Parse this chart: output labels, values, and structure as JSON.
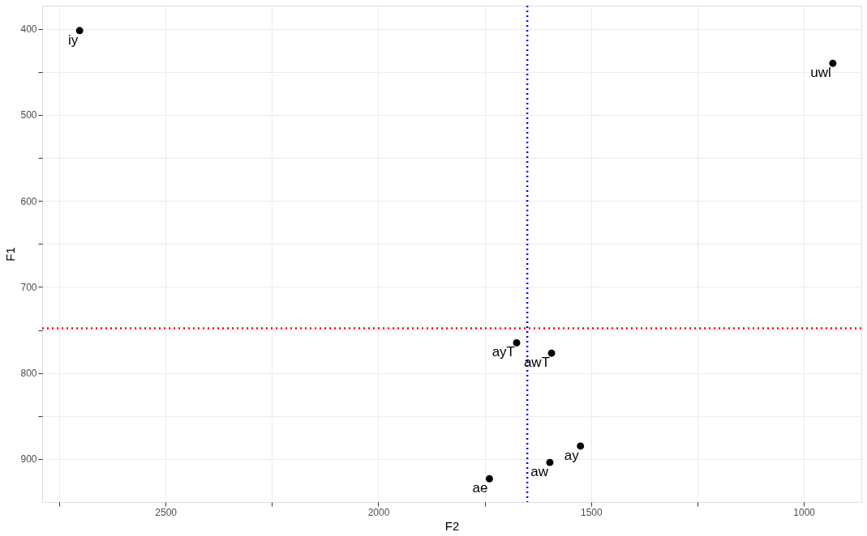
{
  "chart_data": {
    "type": "scatter",
    "xlabel": "F2",
    "ylabel": "F1",
    "series": [
      {
        "color": "#000000",
        "x": [
          2702,
          932,
          1675,
          1593,
          1525,
          1597,
          1739
        ],
        "values": [
          402,
          440,
          765,
          777,
          885,
          904,
          923
        ]
      }
    ],
    "annotations": [
      {
        "text": "iy",
        "x": 2702,
        "y": 402
      },
      {
        "text": "uwl",
        "x": 932,
        "y": 440
      },
      {
        "text": "ayT",
        "x": 1675,
        "y": 765
      },
      {
        "text": "awT",
        "x": 1593,
        "y": 777
      },
      {
        "text": "ay",
        "x": 1525,
        "y": 885
      },
      {
        "text": "aw",
        "x": 1597,
        "y": 904
      },
      {
        "text": "ae",
        "x": 1739,
        "y": 923
      }
    ],
    "xlim": [
      2790,
      865
    ],
    "ylim": [
      950,
      373
    ],
    "xticks": [
      {
        "value": 2750,
        "label": null
      },
      2500,
      {
        "value": 2250,
        "label": null
      },
      2000,
      {
        "value": 1750,
        "label": null
      },
      1500,
      {
        "value": 1250,
        "label": null
      },
      1000
    ],
    "yticks": [
      400,
      {
        "value": 450,
        "label": null
      },
      500,
      {
        "value": 550,
        "label": null
      },
      600,
      {
        "value": 650,
        "label": null
      },
      700,
      {
        "value": 750,
        "label": null
      },
      800,
      {
        "value": 850,
        "label": null
      },
      900
    ],
    "ref_lines": [
      {
        "axis": "x",
        "value": 1650,
        "color": "#0000ff",
        "line_style": "dotted"
      },
      {
        "axis": "y",
        "value": 748,
        "color": "#ff0000",
        "line_style": "dotted"
      }
    ],
    "grid": true,
    "marker": "circle"
  }
}
